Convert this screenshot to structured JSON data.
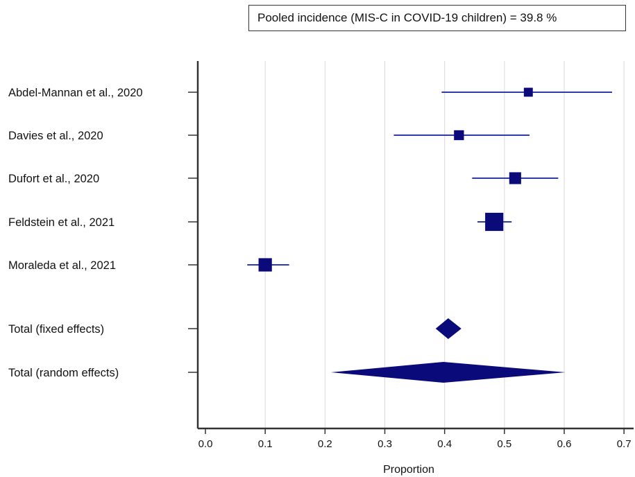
{
  "legend": {
    "text": "Pooled incidence (MIS-C in COVID-19 children) = 39.8 %"
  },
  "chart_data": {
    "type": "forest",
    "xlabel": "Proportion",
    "xlim": [
      -0.02,
      0.71
    ],
    "xticks": [
      "0.0",
      "0.1",
      "0.2",
      "0.3",
      "0.4",
      "0.5",
      "0.6",
      "0.7"
    ],
    "grid": true,
    "studies": [
      {
        "label": "Abdel-Mannan et al., 2020",
        "estimate": 0.54,
        "ci": [
          0.395,
          0.68
        ],
        "weight": 0.7
      },
      {
        "label": "Davies et al., 2020",
        "estimate": 0.424,
        "ci": [
          0.315,
          0.542
        ],
        "weight": 0.9
      },
      {
        "label": "Dufort et al., 2020",
        "estimate": 0.518,
        "ci": [
          0.446,
          0.59
        ],
        "weight": 1.3
      },
      {
        "label": "Feldstein et al., 2021",
        "estimate": 0.483,
        "ci": [
          0.455,
          0.512
        ],
        "weight": 2.6
      },
      {
        "label": "Moraleda et al., 2021",
        "estimate": 0.1,
        "ci": [
          0.07,
          0.14
        ],
        "weight": 1.6
      }
    ],
    "totals": [
      {
        "label": "Total (fixed effects)",
        "estimate": 0.406,
        "ci": [
          0.385,
          0.428
        ]
      },
      {
        "label": "Total (random effects)",
        "estimate": 0.398,
        "ci": [
          0.21,
          0.602
        ]
      }
    ],
    "colors": {
      "marker": "#0a0a7a",
      "ci_line": "#2e3aa8",
      "axis": "#333333",
      "grid": "#d9d9d9"
    }
  }
}
